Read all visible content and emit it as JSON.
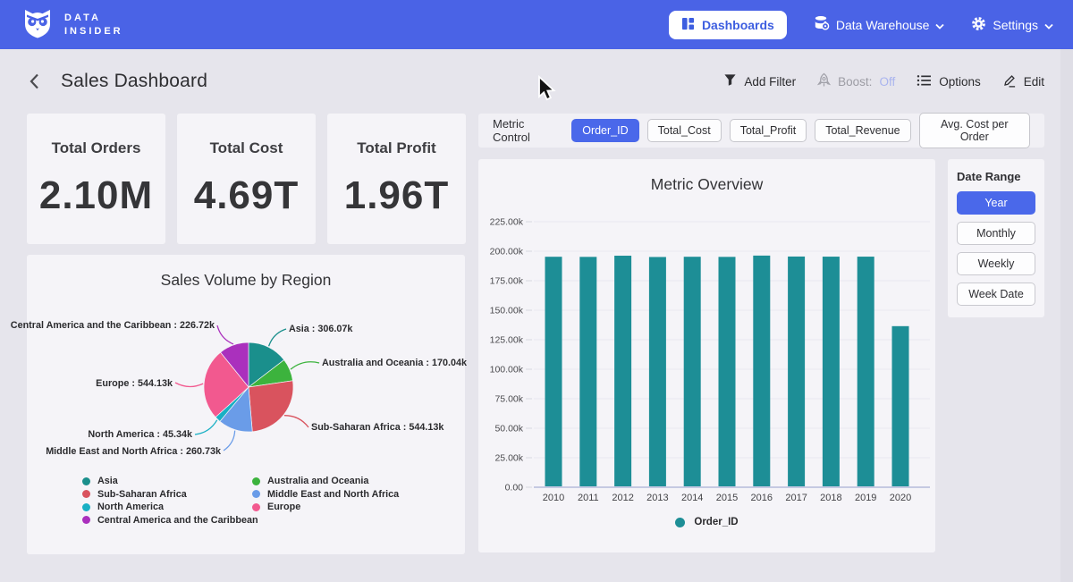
{
  "navbar": {
    "brand_line1": "DATA",
    "brand_line2": "INSIDER",
    "dashboards_label": "Dashboards",
    "data_warehouse_label": "Data Warehouse",
    "settings_label": "Settings"
  },
  "header": {
    "title": "Sales Dashboard",
    "add_filter_label": "Add Filter",
    "boost_label": "Boost:",
    "boost_state": "Off",
    "options_label": "Options",
    "edit_label": "Edit"
  },
  "kpis": [
    {
      "label": "Total Orders",
      "value": "2.10M"
    },
    {
      "label": "Total Cost",
      "value": "4.69T"
    },
    {
      "label": "Total Profit",
      "value": "1.96T"
    }
  ],
  "metric_control": {
    "label": "Metric Control",
    "buttons": [
      {
        "label": "Order_ID",
        "selected": true
      },
      {
        "label": "Total_Cost",
        "selected": false
      },
      {
        "label": "Total_Profit",
        "selected": false
      },
      {
        "label": "Total_Revenue",
        "selected": false
      },
      {
        "label": "Avg. Cost per Order",
        "selected": false
      }
    ]
  },
  "date_range": {
    "label": "Date Range",
    "buttons": [
      {
        "label": "Year",
        "selected": true
      },
      {
        "label": "Monthly",
        "selected": false
      },
      {
        "label": "Weekly",
        "selected": false
      },
      {
        "label": "Week Date",
        "selected": false
      }
    ]
  },
  "chart_data": [
    {
      "type": "pie",
      "title": "Sales Volume by Region",
      "legend_position": "bottom",
      "slices": [
        {
          "label": "Asia",
          "value": 306070,
          "callout": "Asia : 306.07k",
          "color": "#1a8f8c"
        },
        {
          "label": "Australia and Oceania",
          "value": 170040,
          "callout": "Australia and Oceania : 170.04k",
          "color": "#3cb33d"
        },
        {
          "label": "Sub-Saharan Africa",
          "value": 544130,
          "callout": "Sub-Saharan Africa : 544.13k",
          "color": "#d9535e"
        },
        {
          "label": "Middle East and North Africa",
          "value": 260730,
          "callout": "Middle East and North Africa : 260.73k",
          "color": "#6a9ce8"
        },
        {
          "label": "North America",
          "value": 45340,
          "callout": "North America : 45.34k",
          "color": "#19b0c4"
        },
        {
          "label": "Europe",
          "value": 544130,
          "callout": "Europe : 544.13k",
          "color": "#f2598f"
        },
        {
          "label": "Central America and the Caribbean",
          "value": 226720,
          "callout": "Central America and the Caribbean : 226.72k",
          "color": "#aa30bd"
        }
      ]
    },
    {
      "type": "bar",
      "title": "Metric Overview",
      "categories": [
        "2010",
        "2011",
        "2012",
        "2013",
        "2014",
        "2015",
        "2016",
        "2017",
        "2018",
        "2019",
        "2020"
      ],
      "series": [
        {
          "name": "Order_ID",
          "color": "#1d8e96",
          "values": [
            195300,
            195200,
            196200,
            195100,
            195300,
            195200,
            196300,
            195500,
            195400,
            195400,
            136500
          ]
        }
      ],
      "ylim": [
        0,
        225000
      ],
      "ytick_step": 25000,
      "ytick_labels": [
        "0.00",
        "25.00k",
        "50.00k",
        "75.00k",
        "100.00k",
        "125.00k",
        "150.00k",
        "175.00k",
        "200.00k",
        "225.00k"
      ],
      "grid": true,
      "legend_position": "bottom"
    }
  ]
}
